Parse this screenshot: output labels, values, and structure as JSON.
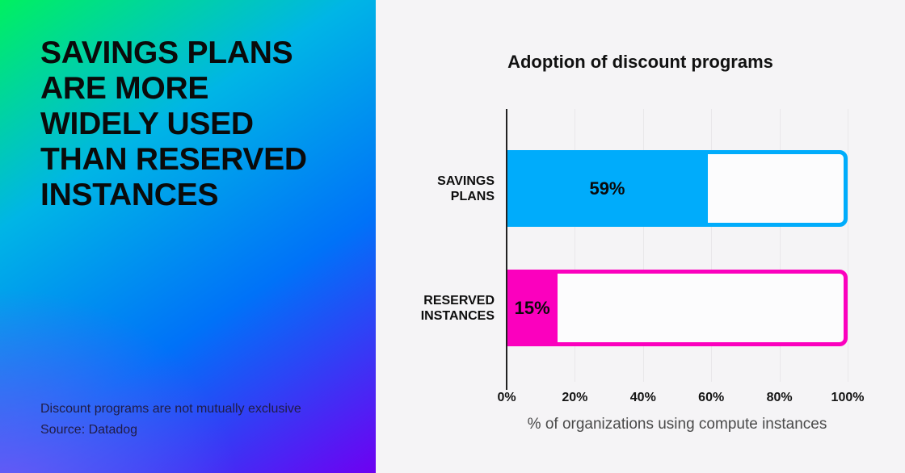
{
  "left_panel": {
    "headline_lines": [
      "SAVINGS PLANS",
      "ARE MORE",
      "WIDELY USED",
      "THAN RESERVED",
      "INSTANCES"
    ],
    "note": "Discount programs are not mutually exclusive",
    "source": "Source: Datadog"
  },
  "chart_data": {
    "type": "bar",
    "orientation": "horizontal",
    "title": "Adoption of discount programs",
    "categories": [
      "SAVINGS PLANS",
      "RESERVED INSTANCES"
    ],
    "values": [
      59,
      15
    ],
    "value_labels": [
      "59%",
      "15%"
    ],
    "bar_colors": [
      "#00ACFB",
      "#FB00BE"
    ],
    "xlabel": "% of organizations using compute instances",
    "xlim": [
      0,
      100
    ],
    "x_ticks": [
      "0%",
      "20%",
      "40%",
      "60%",
      "80%",
      "100%"
    ],
    "grid": "vertical-only",
    "legend": "none"
  },
  "colors": {
    "savings_plans_blue": "#00ACFB",
    "reserved_instances_pink": "#FB00BE",
    "panel_gradient_top_left": "#00F060",
    "panel_gradient_top_right": "#00B8F8",
    "panel_gradient_mid_right": "#0072F8",
    "panel_gradient_bottom_left": "#7B55F5",
    "panel_gradient_bottom_right": "#6E00F2",
    "chart_background": "#F5F4F6",
    "axis_line": "#222222",
    "gridline": "#E9E7EA"
  }
}
